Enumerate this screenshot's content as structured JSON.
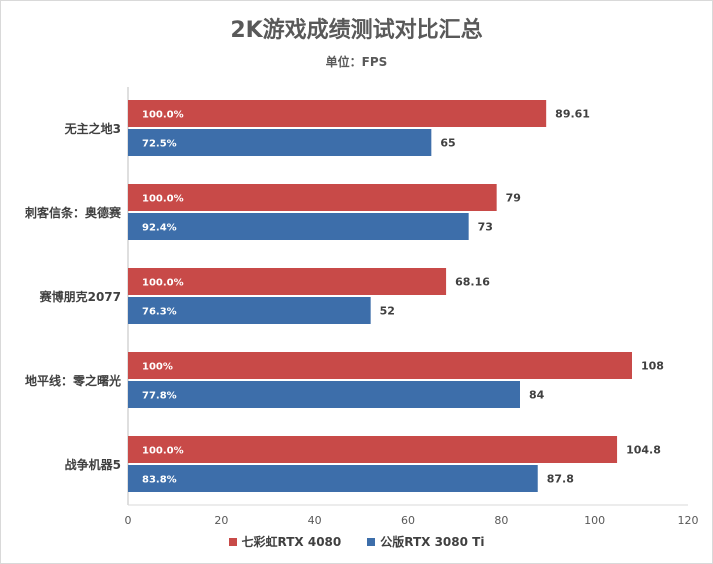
{
  "chart_data": {
    "type": "bar",
    "orientation": "horizontal",
    "title": "2K游戏成绩测试对比汇总",
    "subtitle": "单位：FPS",
    "categories": [
      "无主之地3",
      "刺客信条：奥德赛",
      "赛博朋克2077",
      "地平线：零之曙光",
      "战争机器5"
    ],
    "series": [
      {
        "name": "七彩虹RTX 4080",
        "color": "#c84a48",
        "values": [
          89.61,
          79,
          68.16,
          108,
          104.8
        ],
        "value_labels": [
          "89.61",
          "79",
          "68.16",
          "108",
          "104.8"
        ],
        "percent_labels": [
          "100.0%",
          "100.0%",
          "100.0%",
          "100%",
          "100.0%"
        ]
      },
      {
        "name": "公版RTX 3080 Ti",
        "color": "#3d6eaa",
        "values": [
          65,
          73,
          52,
          84,
          87.8
        ],
        "value_labels": [
          "65",
          "73",
          "52",
          "84",
          "87.8"
        ],
        "percent_labels": [
          "72.5%",
          "92.4%",
          "76.3%",
          "77.8%",
          "83.8%"
        ]
      }
    ],
    "xlim": [
      0,
      120
    ],
    "x_ticks": [
      0,
      20,
      40,
      60,
      80,
      100,
      120
    ],
    "x_tick_labels": [
      "0",
      "20",
      "40",
      "60",
      "80",
      "100",
      "120"
    ],
    "grid": false,
    "legend_position": "bottom"
  }
}
